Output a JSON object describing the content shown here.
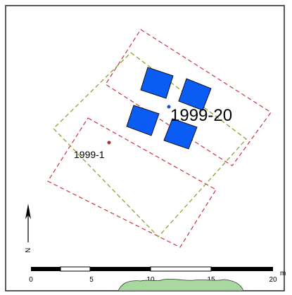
{
  "map": {
    "points": [
      {
        "label": "1999-20",
        "color": "#1f4fd1"
      },
      {
        "label": "1999-1",
        "color": "#b2342c"
      }
    ],
    "north_label": "N",
    "scale_bar": {
      "ticks": [
        "0",
        "5",
        "10",
        "15",
        "20"
      ],
      "unit": "m"
    },
    "colors": {
      "square_fill": "#0a5cf5",
      "red_dashed": "#cc3342",
      "green_dashed": "#8a9a2a",
      "land": "#a8d8a0"
    }
  }
}
